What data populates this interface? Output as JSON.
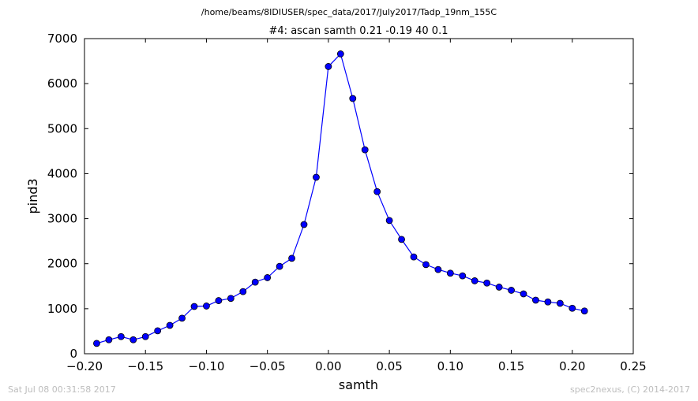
{
  "figure": {
    "suptitle": "/home/beams/8IDIUSER/spec_data/2017/July2017/Tadp_19nm_155C",
    "footer_left": "Sat Jul 08 00:31:58 2017",
    "footer_right": "spec2nexus, (C) 2014-2017"
  },
  "chart_data": {
    "type": "line",
    "title": "#4: ascan  samth 0.21 -0.19  40 0.1",
    "xlabel": "samth",
    "ylabel": "pind3",
    "xlim": [
      -0.2,
      0.25
    ],
    "ylim": [
      0,
      7000
    ],
    "xticks": [
      "−0.20",
      "−0.15",
      "−0.10",
      "−0.05",
      "0.00",
      "0.05",
      "0.10",
      "0.15",
      "0.20",
      "0.25"
    ],
    "yticks": [
      "0",
      "1000",
      "2000",
      "3000",
      "4000",
      "5000",
      "6000",
      "7000"
    ],
    "grid": false,
    "line_color": "#0000ff",
    "marker": "circle",
    "x": [
      -0.19,
      -0.18,
      -0.17,
      -0.16,
      -0.15,
      -0.14,
      -0.13,
      -0.12,
      -0.11,
      -0.1,
      -0.09,
      -0.08,
      -0.07,
      -0.06,
      -0.05,
      -0.04,
      -0.03,
      -0.02,
      -0.01,
      0.0,
      0.01,
      0.02,
      0.03,
      0.04,
      0.05,
      0.06,
      0.07,
      0.08,
      0.09,
      0.1,
      0.11,
      0.12,
      0.13,
      0.14,
      0.15,
      0.16,
      0.17,
      0.18,
      0.19,
      0.2,
      0.21
    ],
    "y": [
      230,
      310,
      380,
      310,
      380,
      510,
      630,
      790,
      1050,
      1060,
      1180,
      1230,
      1380,
      1590,
      1690,
      1940,
      2120,
      2870,
      3920,
      6380,
      6660,
      5670,
      4530,
      3600,
      2960,
      2540,
      2150,
      1980,
      1870,
      1790,
      1730,
      1620,
      1570,
      1480,
      1410,
      1330,
      1190,
      1150,
      1120,
      1010,
      950
    ]
  }
}
